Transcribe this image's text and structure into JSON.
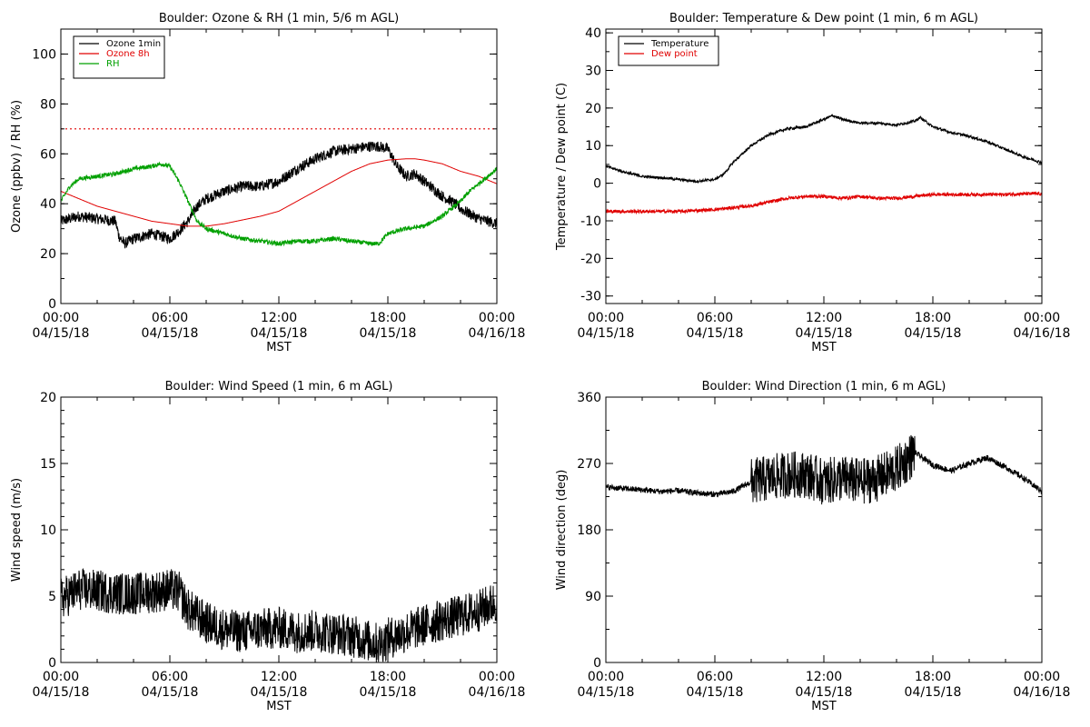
{
  "chart_data": [
    {
      "type": "line",
      "title": "Boulder: Ozone & RH (1 min, 5/6 m AGL)",
      "xlabel": "MST",
      "ylabel": "Ozone (ppbv) / RH (%)",
      "ylim": [
        0,
        110
      ],
      "yticks": [
        0,
        20,
        40,
        60,
        80,
        100
      ],
      "xlim": [
        0,
        24
      ],
      "xticks": [
        0,
        6,
        12,
        18,
        24
      ],
      "xtick_times": [
        "00:00",
        "06:00",
        "12:00",
        "18:00",
        "00:00"
      ],
      "xtick_dates": [
        "04/15/18",
        "04/15/18",
        "04/15/18",
        "04/15/18",
        "04/16/18"
      ],
      "legend": "top-left",
      "reference_lines": [
        {
          "y": 70,
          "color": "#e00000",
          "style": "dotted"
        }
      ],
      "series": [
        {
          "name": "Ozone 1min",
          "color": "#000000",
          "noise": 2.2,
          "x": [
            0,
            1,
            2,
            3,
            3.2,
            3.5,
            4,
            5,
            6,
            6.5,
            7,
            7.5,
            8,
            9,
            10,
            11,
            12,
            13,
            14,
            15,
            16,
            17,
            17.5,
            18,
            18.5,
            19,
            19.5,
            20,
            20.5,
            21,
            21.5,
            22,
            22.5,
            23,
            24
          ],
          "y": [
            33,
            35,
            34,
            33,
            27,
            24,
            26,
            28,
            26,
            29,
            33,
            39,
            42,
            45,
            47,
            47,
            49,
            54,
            58,
            61,
            62,
            63,
            63,
            62,
            55,
            51,
            52,
            49,
            46,
            43,
            41,
            38,
            36,
            34,
            32
          ]
        },
        {
          "name": "Ozone 8h",
          "color": "#e00000",
          "noise": 0,
          "x": [
            0,
            1,
            2,
            3,
            4,
            5,
            6,
            7,
            8,
            9,
            10,
            11,
            12,
            13,
            14,
            15,
            16,
            17,
            18,
            19,
            19.5,
            20,
            21,
            22,
            23,
            24
          ],
          "y": [
            45,
            42,
            39,
            37,
            35,
            33,
            32,
            31,
            31,
            32,
            33.5,
            35,
            37,
            41,
            45,
            49,
            53,
            56,
            57.5,
            58,
            58,
            57.5,
            56,
            53,
            51,
            48
          ]
        },
        {
          "name": "RH",
          "color": "#00a000",
          "noise": 0.9,
          "x": [
            0,
            0.5,
            1,
            2,
            3,
            4,
            5,
            5.5,
            6,
            6.5,
            7,
            7.5,
            8,
            9,
            10,
            11,
            12,
            13,
            14,
            15,
            16,
            17,
            17.5,
            18,
            19,
            20,
            21,
            22,
            22.5,
            23,
            24
          ],
          "y": [
            41,
            47,
            50,
            51,
            52,
            54,
            55,
            56,
            55,
            49,
            41,
            33,
            30,
            28,
            26,
            25,
            24,
            25,
            25,
            26,
            25,
            24,
            24,
            28,
            30,
            31,
            35,
            41,
            45,
            48,
            54
          ]
        }
      ]
    },
    {
      "type": "line",
      "title": "Boulder: Temperature & Dew point (1 min, 6 m AGL)",
      "xlabel": "MST",
      "ylabel": "Temperature / Dew point (C)",
      "ylim": [
        -32,
        41
      ],
      "yticks": [
        -30,
        -20,
        -10,
        0,
        10,
        20,
        30,
        40
      ],
      "xlim": [
        0,
        24
      ],
      "xticks": [
        0,
        6,
        12,
        18,
        24
      ],
      "xtick_times": [
        "00:00",
        "06:00",
        "12:00",
        "18:00",
        "00:00"
      ],
      "xtick_dates": [
        "04/15/18",
        "04/15/18",
        "04/15/18",
        "04/15/18",
        "04/16/18"
      ],
      "legend": "top-left",
      "reference_lines": [],
      "series": [
        {
          "name": "Temperature",
          "color": "#000000",
          "noise": 0.35,
          "x": [
            0,
            1,
            2,
            3,
            4,
            5,
            6,
            6.5,
            7,
            8,
            9,
            10,
            11,
            12,
            12.5,
            13,
            14,
            15,
            16,
            17,
            17.3,
            18,
            19,
            20,
            21,
            22,
            23,
            24
          ],
          "y": [
            4.5,
            3,
            1.8,
            1.5,
            1,
            0.5,
            1,
            2.5,
            5.5,
            10,
            13,
            14.5,
            15,
            17,
            18,
            17,
            16,
            16,
            15.5,
            16.5,
            17.5,
            15,
            13.5,
            12.5,
            11,
            9,
            7,
            5.5
          ]
        },
        {
          "name": "Dew point",
          "color": "#e00000",
          "noise": 0.45,
          "x": [
            0,
            2,
            4,
            6,
            7,
            8,
            9,
            10,
            11,
            12,
            13,
            14,
            15,
            16,
            17,
            18,
            19,
            20,
            21,
            22,
            23,
            24
          ],
          "y": [
            -7.5,
            -7.5,
            -7.5,
            -7,
            -6.5,
            -6,
            -5,
            -4,
            -3.5,
            -3.5,
            -4,
            -3.5,
            -4,
            -4,
            -3.5,
            -3,
            -3,
            -3,
            -3,
            -3,
            -2.8,
            -2.8
          ]
        }
      ]
    },
    {
      "type": "line",
      "title": "Boulder: Wind Speed (1 min, 6 m AGL)",
      "xlabel": "MST",
      "ylabel": "Wind speed (m/s)",
      "ylim": [
        0,
        20
      ],
      "yticks": [
        0,
        5,
        10,
        15,
        20
      ],
      "xlim": [
        0,
        24
      ],
      "xticks": [
        0,
        6,
        12,
        18,
        24
      ],
      "xtick_times": [
        "00:00",
        "06:00",
        "12:00",
        "18:00",
        "00:00"
      ],
      "xtick_dates": [
        "04/15/18",
        "04/15/18",
        "04/15/18",
        "04/15/18",
        "04/16/18"
      ],
      "legend": "none",
      "reference_lines": [],
      "series": [
        {
          "name": "",
          "color": "#000000",
          "noise": 1.6,
          "x": [
            0,
            1,
            2,
            3,
            4,
            5,
            6,
            6.5,
            7,
            8,
            9,
            10,
            11,
            12,
            13,
            14,
            15,
            16,
            17,
            17.5,
            18,
            19,
            20,
            21,
            22,
            23,
            24
          ],
          "y": [
            4.8,
            5.5,
            5.4,
            5.2,
            5.2,
            5.3,
            5.5,
            5.3,
            4,
            3,
            2.5,
            2.3,
            2.5,
            2.6,
            2.3,
            2.4,
            2.2,
            2,
            1.6,
            1.4,
            1.8,
            2.3,
            2.8,
            3.2,
            3.5,
            3.9,
            4.6
          ]
        }
      ]
    },
    {
      "type": "line",
      "title": "Boulder: Wind Direction (1 min, 6 m AGL)",
      "xlabel": "MST",
      "ylabel": "Wind direction (deg)",
      "ylim": [
        0,
        360
      ],
      "yticks": [
        0,
        90,
        180,
        270,
        360
      ],
      "xlim": [
        0,
        24
      ],
      "xticks": [
        0,
        6,
        12,
        18,
        24
      ],
      "xtick_times": [
        "00:00",
        "06:00",
        "12:00",
        "18:00",
        "00:00"
      ],
      "xtick_dates": [
        "04/15/18",
        "04/15/18",
        "04/15/18",
        "04/15/18",
        "04/16/18"
      ],
      "legend": "none",
      "reference_lines": [],
      "series": [
        {
          "name": "",
          "color": "#000000",
          "noise": 4,
          "noise_band": [
            8,
            17
          ],
          "band_noise": 32,
          "x": [
            0,
            1,
            2,
            3,
            4,
            5,
            6,
            7,
            8,
            9,
            10,
            11,
            12,
            13,
            14,
            15,
            16,
            17,
            18,
            19,
            20,
            21,
            22,
            23,
            24
          ],
          "y": [
            238,
            236,
            234,
            232,
            233,
            230,
            228,
            232,
            245,
            250,
            255,
            255,
            245,
            250,
            245,
            250,
            262,
            285,
            268,
            260,
            270,
            278,
            265,
            250,
            232
          ]
        }
      ]
    }
  ]
}
